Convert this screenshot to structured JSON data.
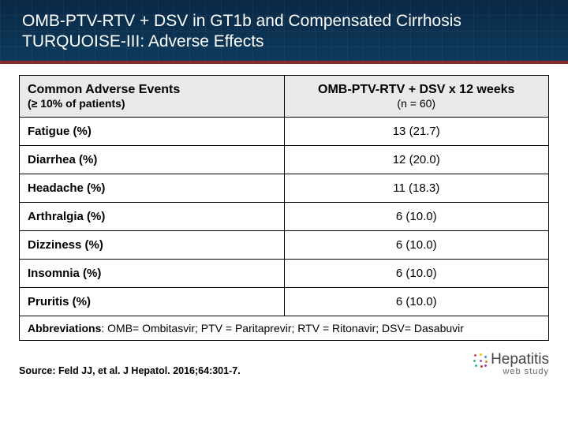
{
  "header": {
    "line1": "OMB-PTV-RTV + DSV in GT1b and Compensated Cirrhosis",
    "line2": "TURQUOISE-III: Adverse Effects",
    "bg_gradient": [
      "#0a2845",
      "#0d3a5c"
    ],
    "underline_color": "#8b2a2a",
    "text_color": "#ffffff",
    "title_fontsize": 21
  },
  "table": {
    "border_color": "#000000",
    "header_bg": "#e9e9e9",
    "row_bg": "#ffffff",
    "cell_fontsize": 15,
    "columns": [
      {
        "main": "Common Adverse Events",
        "sub": "(≥ 10% of patients)",
        "align": "left",
        "main_weight": 700,
        "sub_weight": 700
      },
      {
        "main": "OMB-PTV-RTV + DSV  x 12 weeks",
        "sub": "(n = 60)",
        "align": "center",
        "main_weight": 700,
        "sub_weight": 400
      }
    ],
    "rows": [
      {
        "name": "Fatigue (%)",
        "value": "13 (21.7)"
      },
      {
        "name": "Diarrhea (%)",
        "value": "12 (20.0)"
      },
      {
        "name": "Headache (%)",
        "value": "11 (18.3)"
      },
      {
        "name": "Arthralgia (%)",
        "value": "6 (10.0)"
      },
      {
        "name": "Dizziness (%)",
        "value": "6 (10.0)"
      },
      {
        "name": "Insomnia (%)",
        "value": "6 (10.0)"
      },
      {
        "name": "Pruritis (%)",
        "value": "6 (10.0)"
      }
    ],
    "abbrev": {
      "label": "Abbreviations",
      "text": ": OMB= Ombitasvir; PTV = Paritaprevir; RTV = Ritonavir; DSV= Dasabuvir"
    }
  },
  "source": "Source: Feld JJ, et al. J Hepatol. 2016;64:301-7.",
  "brand": {
    "title": "Hepatitis",
    "sub": "web study",
    "dot_colors": [
      "#e74c3c",
      "#f1c40f",
      "#3498db",
      "#2ecc71",
      "#9b59b6",
      "#e67e22",
      "#1abc9c",
      "#c0392b",
      "#8e44ad"
    ]
  }
}
